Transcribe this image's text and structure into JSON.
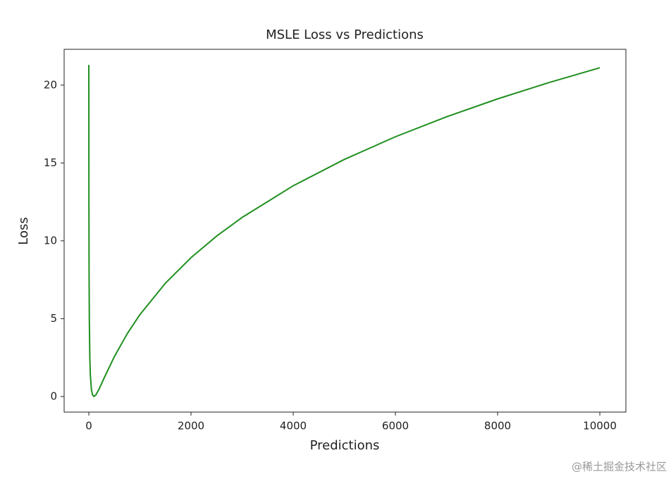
{
  "chart_data": {
    "type": "line",
    "title": "MSLE Loss vs Predictions",
    "xlabel": "Predictions",
    "ylabel": "Loss",
    "x": [
      0,
      2,
      5,
      10,
      20,
      30,
      50,
      70,
      100,
      140,
      200,
      300,
      500,
      750,
      1000,
      1500,
      2000,
      2500,
      3000,
      4000,
      5000,
      6000,
      7000,
      8000,
      9000,
      10000
    ],
    "series": [
      {
        "name": "MSLE",
        "color": "#1f8f1f",
        "values": [
          21.3,
          12.366,
          7.971,
          4.916,
          2.467,
          1.395,
          0.467,
          0.124,
          0,
          0.111,
          0.474,
          1.192,
          2.565,
          4.025,
          5.261,
          7.283,
          8.918,
          10.3,
          11.503,
          13.536,
          15.228,
          16.684,
          17.966,
          19.116,
          20.16,
          21.117
        ]
      }
    ],
    "xlim": [
      -483,
      10510
    ],
    "ylim": [
      -1.0,
      22.3
    ],
    "xticks": [
      0,
      2000,
      4000,
      6000,
      8000,
      10000
    ],
    "yticks": [
      0,
      5,
      10,
      15,
      20
    ],
    "grid": false,
    "watermark": "@稀土掘金技术社区"
  }
}
